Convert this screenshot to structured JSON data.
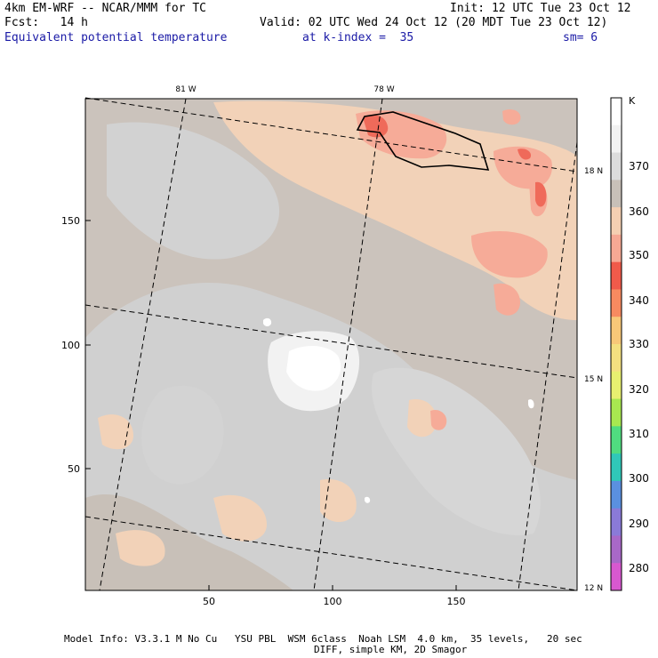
{
  "header": {
    "model_line": "4km EM-WRF -- NCAR/MMM for TC",
    "forecast_line": "Fcst:   14 h",
    "init_line": "Init: 12 UTC Tue 23 Oct 12",
    "valid_line": "Valid: 02 UTC Wed 24 Oct 12 (20 MDT Tue 23 Oct 12)",
    "field_name": "Equivalent potential temperature",
    "level_info": "at k-index =  35",
    "smoothing": "sm= 6"
  },
  "map": {
    "lon_labels": [
      "81 W",
      "78 W"
    ],
    "lat_labels": [
      "18 N",
      "15 N",
      "12 N"
    ],
    "x_ticks": [
      "50",
      "100",
      "150"
    ],
    "y_ticks": [
      "150",
      "100",
      "50"
    ]
  },
  "colorbar": {
    "unit": "K",
    "levels": [
      "370",
      "360",
      "350",
      "340",
      "330",
      "320",
      "310",
      "300",
      "290",
      "280"
    ],
    "colors": [
      "#ffffff",
      "#f2f2f2",
      "#dcdcdc",
      "#c8c0b8",
      "#f5cfb2",
      "#f6a894",
      "#f05a4a",
      "#f78a60",
      "#f8c878",
      "#f4e080",
      "#e8f070",
      "#a8e850",
      "#50dc80",
      "#30c8b8",
      "#5a90e0",
      "#8a7ad8",
      "#a868c8",
      "#d858d0"
    ]
  },
  "footer": {
    "line1": "Model Info: V3.3.1 M No Cu   YSU PBL  WSM 6class  Noah LSM  4.0 km,  35 levels,   20 sec",
    "line2": "DIFF, simple KM, 2D Smagor"
  }
}
